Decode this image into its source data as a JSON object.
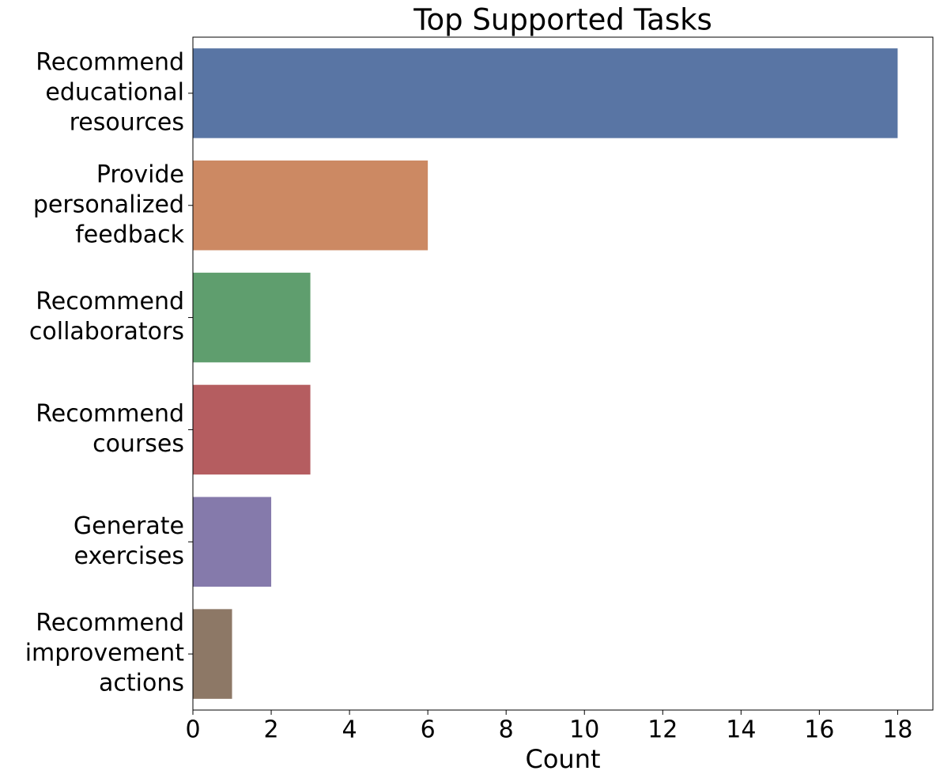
{
  "chart_data": {
    "type": "barh",
    "title": "Top Supported Tasks",
    "x_label": "Count",
    "categories": [
      [
        "Recommend",
        "educational",
        "resources"
      ],
      [
        "Provide",
        "personalized",
        "feedback"
      ],
      [
        "Recommend",
        "collaborators"
      ],
      [
        "Recommend",
        "courses"
      ],
      [
        "Generate",
        "exercises"
      ],
      [
        "Recommend",
        "improvement",
        "actions"
      ]
    ],
    "values": [
      18,
      6,
      3,
      3,
      2,
      1
    ],
    "colors": [
      "#5975a4",
      "#cc8963",
      "#5f9e6e",
      "#b55d60",
      "#857aab",
      "#8d7866"
    ],
    "xlim": [
      0,
      18.9
    ],
    "xticks": [
      0,
      2,
      4,
      6,
      8,
      10,
      12,
      14,
      16,
      18
    ],
    "grid": false
  }
}
